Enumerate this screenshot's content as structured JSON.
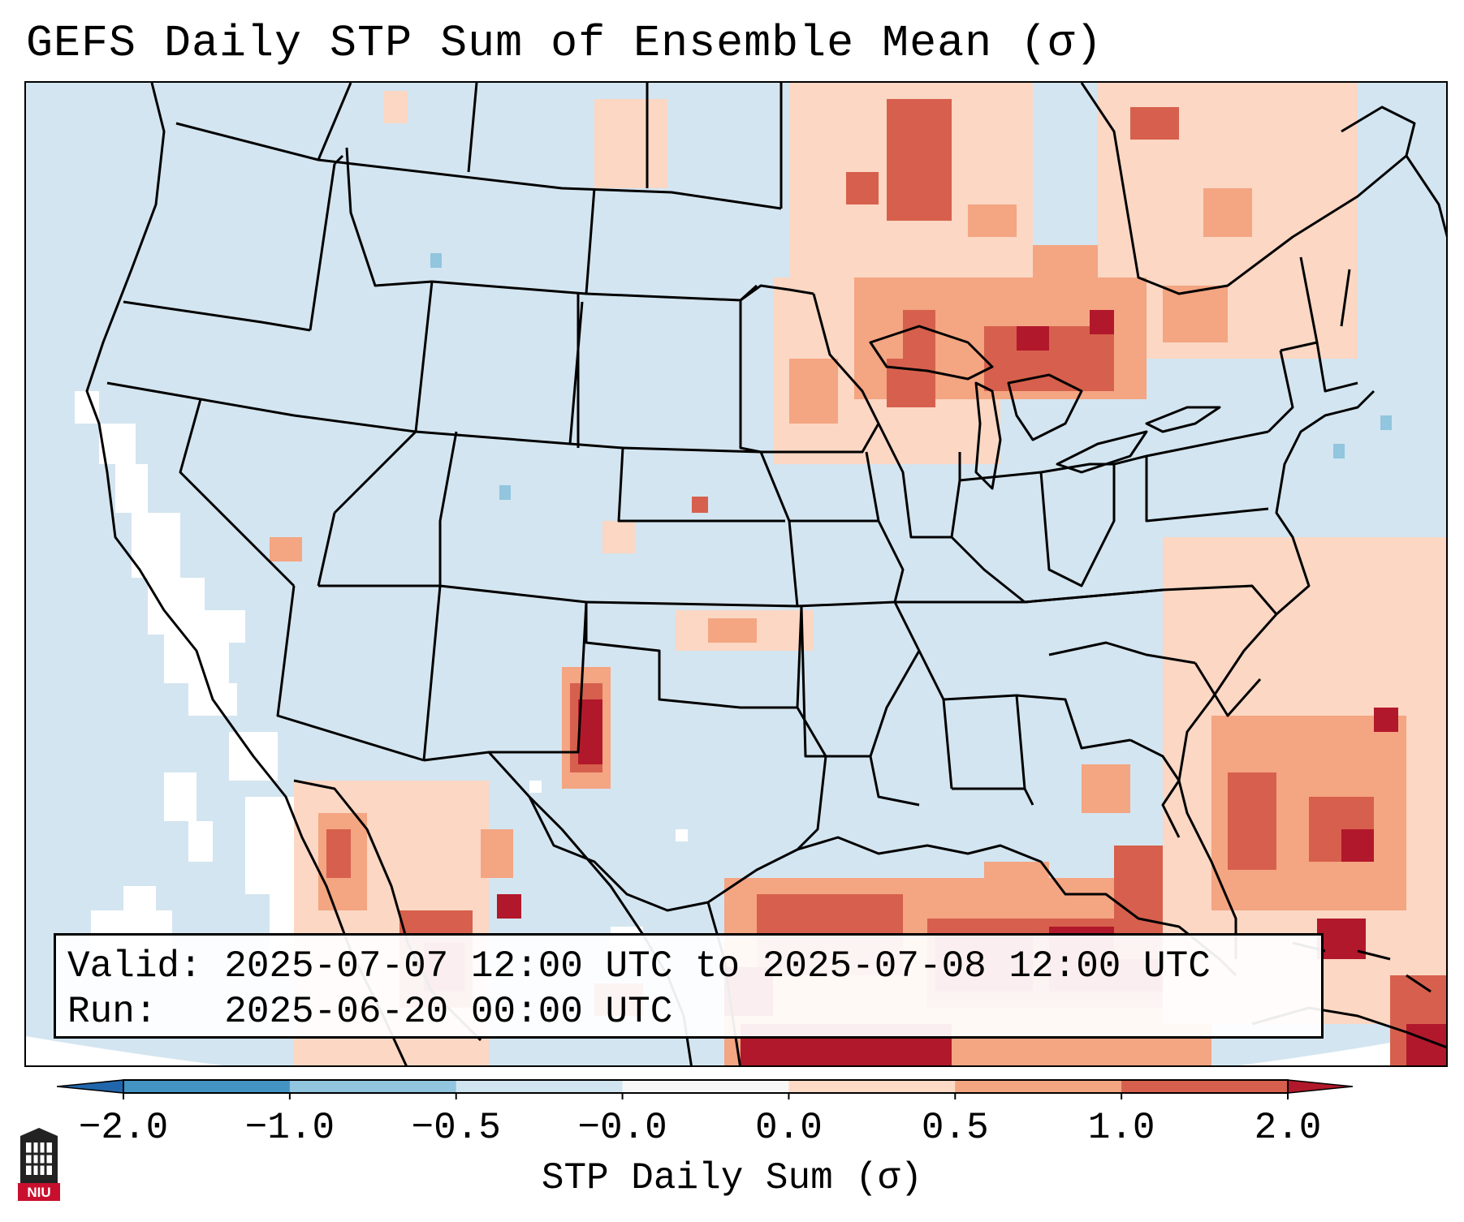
{
  "title": "GEFS Daily STP Sum of Ensemble Mean (σ)",
  "map": {
    "region": "Contiguous United States, northern Mexico, Gulf of Mexico, southern Canada",
    "variable": "STP Daily Sum of Ensemble Mean",
    "units": "σ",
    "colors": {
      "ocean": "#d3e5f0",
      "land_neutral": "#d3e5f0",
      "near_zero_low": "#f7f7f7",
      "light_positive": "#fbd7c4",
      "medium_positive": "#f4a582",
      "strong_positive": "#d6604d",
      "very_strong_positive": "#b2182b",
      "light_negative": "#92c5de",
      "border_lines": "#000000"
    },
    "notable_anomaly_areas": [
      "Great Lakes / Michigan",
      "Eastern New Mexico / Texas Panhandle",
      "Gulf of Mexico",
      "Southeast US coast / Western Atlantic",
      "Northern Mexico",
      "Ontario / Quebec"
    ]
  },
  "info": {
    "valid_line": "Valid: 2025-07-07 12:00 UTC to 2025-07-08 12:00 UTC",
    "run_line": "Run:   2025-06-20 00:00 UTC"
  },
  "colorbar": {
    "label": "STP Daily Sum (σ)",
    "tick_labels": [
      "−2.0",
      "−1.0",
      "−0.5",
      "−0.0",
      "0.0",
      "0.5",
      "1.0",
      "2.0"
    ],
    "bins": [
      {
        "from": "−2.0",
        "to": "−1.0",
        "color": "#4393c3"
      },
      {
        "from": "−1.0",
        "to": "−0.5",
        "color": "#92c5de"
      },
      {
        "from": "−0.5",
        "to": "−0.0",
        "color": "#d1e5f0"
      },
      {
        "from": "−0.0",
        "to": "0.0",
        "color": "#f7f7f7"
      },
      {
        "from": "0.0",
        "to": "0.5",
        "color": "#fddbc7"
      },
      {
        "from": "0.5",
        "to": "1.0",
        "color": "#f4a582"
      },
      {
        "from": "1.0",
        "to": "2.0",
        "color": "#d6604d"
      }
    ],
    "extend_low_color": "#2166ac",
    "extend_high_color": "#b2182b"
  },
  "logo": {
    "text": "NIU"
  }
}
